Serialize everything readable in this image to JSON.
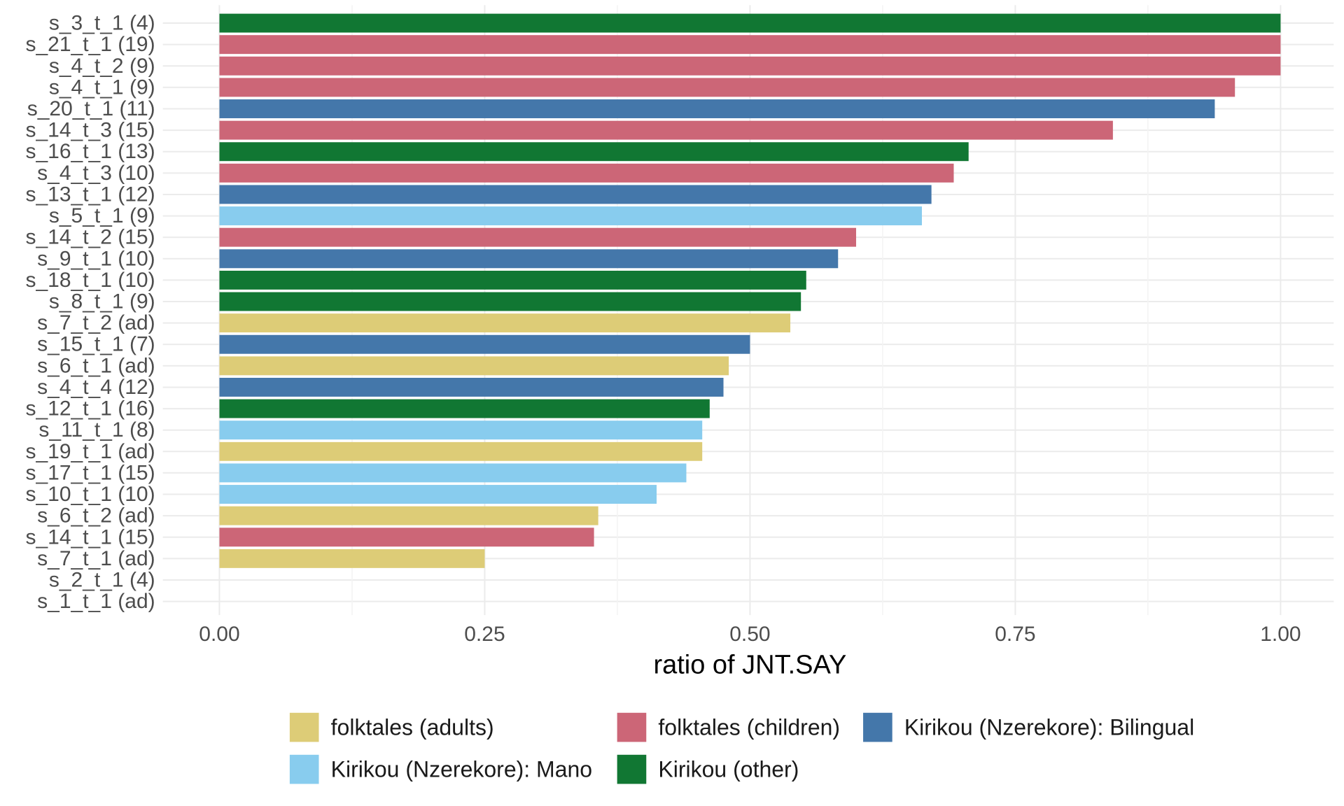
{
  "chart_data": {
    "type": "bar",
    "orientation": "horizontal",
    "title": "",
    "xlabel": "ratio of JNT.SAY",
    "ylabel": "",
    "xlim": [
      0,
      1
    ],
    "xticks": [
      "0.00",
      "0.25",
      "0.50",
      "0.75",
      "1.00"
    ],
    "xtick_values": [
      0,
      0.25,
      0.5,
      0.75,
      1.0
    ],
    "grid": true,
    "legend_position": "bottom",
    "groups": [
      {
        "name": "folktales (adults)",
        "color": "#DDCC77"
      },
      {
        "name": "folktales (children)",
        "color": "#CC6677"
      },
      {
        "name": "Kirikou (Nzerekore): Bilingual",
        "color": "#4477AA"
      },
      {
        "name": "Kirikou (Nzerekore): Mano",
        "color": "#88CCEE"
      },
      {
        "name": "Kirikou (other)",
        "color": "#117733"
      }
    ],
    "bars": [
      {
        "label": "s_3_t_1 (4)",
        "value": 1.0,
        "group": "Kirikou (other)"
      },
      {
        "label": "s_21_t_1 (19)",
        "value": 1.0,
        "group": "folktales (children)"
      },
      {
        "label": "s_4_t_2 (9)",
        "value": 1.0,
        "group": "folktales (children)"
      },
      {
        "label": "s_4_t_1 (9)",
        "value": 0.957,
        "group": "folktales (children)"
      },
      {
        "label": "s_20_t_1 (11)",
        "value": 0.938,
        "group": "Kirikou (Nzerekore): Bilingual"
      },
      {
        "label": "s_14_t_3 (15)",
        "value": 0.842,
        "group": "folktales (children)"
      },
      {
        "label": "s_16_t_1 (13)",
        "value": 0.706,
        "group": "Kirikou (other)"
      },
      {
        "label": "s_4_t_3 (10)",
        "value": 0.692,
        "group": "folktales (children)"
      },
      {
        "label": "s_13_t_1 (12)",
        "value": 0.671,
        "group": "Kirikou (Nzerekore): Bilingual"
      },
      {
        "label": "s_5_t_1 (9)",
        "value": 0.662,
        "group": "Kirikou (Nzerekore): Mano"
      },
      {
        "label": "s_14_t_2 (15)",
        "value": 0.6,
        "group": "folktales (children)"
      },
      {
        "label": "s_9_t_1 (10)",
        "value": 0.583,
        "group": "Kirikou (Nzerekore): Bilingual"
      },
      {
        "label": "s_18_t_1 (10)",
        "value": 0.553,
        "group": "Kirikou (other)"
      },
      {
        "label": "s_8_t_1 (9)",
        "value": 0.548,
        "group": "Kirikou (other)"
      },
      {
        "label": "s_7_t_2 (ad)",
        "value": 0.538,
        "group": "folktales (adults)"
      },
      {
        "label": "s_15_t_1 (7)",
        "value": 0.5,
        "group": "Kirikou (Nzerekore): Bilingual"
      },
      {
        "label": "s_6_t_1 (ad)",
        "value": 0.48,
        "group": "folktales (adults)"
      },
      {
        "label": "s_4_t_4 (12)",
        "value": 0.475,
        "group": "Kirikou (Nzerekore): Bilingual"
      },
      {
        "label": "s_12_t_1 (16)",
        "value": 0.462,
        "group": "Kirikou (other)"
      },
      {
        "label": "s_11_t_1 (8)",
        "value": 0.455,
        "group": "Kirikou (Nzerekore): Mano"
      },
      {
        "label": "s_19_t_1 (ad)",
        "value": 0.455,
        "group": "folktales (adults)"
      },
      {
        "label": "s_17_t_1 (15)",
        "value": 0.44,
        "group": "Kirikou (Nzerekore): Mano"
      },
      {
        "label": "s_10_t_1 (10)",
        "value": 0.412,
        "group": "Kirikou (Nzerekore): Mano"
      },
      {
        "label": "s_6_t_2 (ad)",
        "value": 0.357,
        "group": "folktales (adults)"
      },
      {
        "label": "s_14_t_1 (15)",
        "value": 0.353,
        "group": "folktales (children)"
      },
      {
        "label": "s_7_t_1 (ad)",
        "value": 0.25,
        "group": "folktales (adults)"
      },
      {
        "label": "s_2_t_1 (4)",
        "value": 0,
        "group": ""
      },
      {
        "label": "s_1_t_1 (ad)",
        "value": 0,
        "group": ""
      }
    ]
  }
}
